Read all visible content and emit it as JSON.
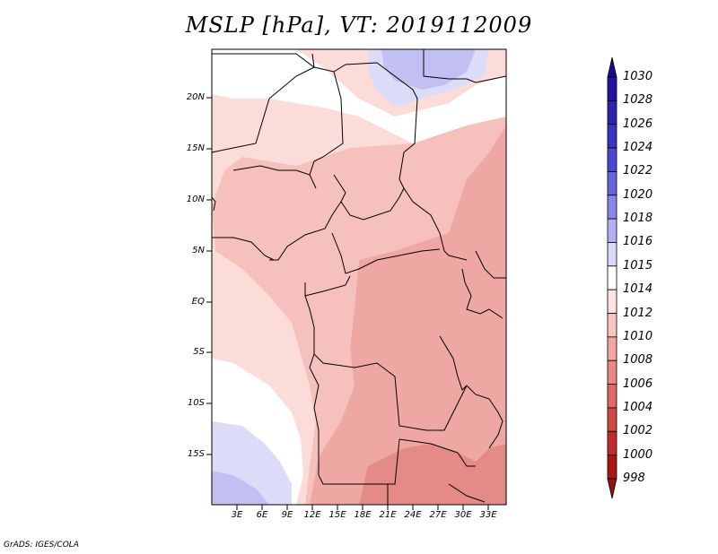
{
  "title": "MSLP [hPa], VT: 2019112009",
  "footer": "GrADS: IGES/COLA",
  "map": {
    "lat_labels": [
      "20N",
      "15N",
      "10N",
      "5N",
      "EQ",
      "5S",
      "10S",
      "15S"
    ],
    "lon_labels": [
      "3E",
      "6E",
      "9E",
      "12E",
      "15E",
      "18E",
      "21E",
      "24E",
      "27E",
      "30E",
      "33E"
    ],
    "lon_range": [
      0,
      35
    ],
    "lat_range": [
      -19.5,
      25
    ]
  },
  "colorbar": {
    "levels": [
      "1030",
      "1028",
      "1026",
      "1024",
      "1022",
      "1020",
      "1018",
      "1016",
      "1015",
      "1014",
      "1012",
      "1010",
      "1008",
      "1006",
      "1004",
      "1002",
      "1000",
      "998"
    ],
    "colors": [
      "#1a0a8c",
      "#23169e",
      "#2f24b0",
      "#3a33c2",
      "#4d48d1",
      "#6963de",
      "#8a85e8",
      "#b4b1f0",
      "#d8d8f8",
      "#ffffff",
      "#fde3e1",
      "#f8c6c2",
      "#f2a7a2",
      "#ea8883",
      "#e06866",
      "#d24846",
      "#c22b2b",
      "#aa1616",
      "#961010"
    ]
  },
  "field_colors": {
    "p1008": "#efa7a3",
    "p1010": "#f6c1bd",
    "p1012": "#fcdcd9",
    "p1014": "#ffffff",
    "p1015": "#dcdcf8",
    "p1016": "#c2c0f2",
    "p1018": "#b0adee",
    "p1006": "#e58b87"
  }
}
